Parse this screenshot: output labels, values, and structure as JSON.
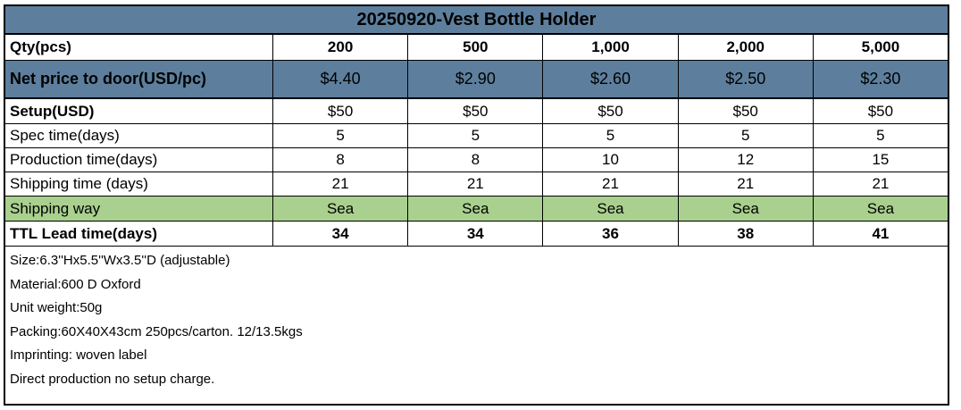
{
  "title": "20250920-Vest Bottle Holder",
  "colors": {
    "header_blue": "#5d7f9d",
    "shipping_green": "#a9d08e",
    "border": "#000000",
    "text": "#000000"
  },
  "table": {
    "rows": [
      {
        "label": "Qty(pcs)",
        "values": [
          "200",
          "500",
          "1,000",
          "2,000",
          "5,000"
        ]
      },
      {
        "label": "Net price to door(USD/pc)",
        "values": [
          "$4.40",
          "$2.90",
          "$2.60",
          "$2.50",
          "$2.30"
        ]
      },
      {
        "label": "Setup(USD)",
        "values": [
          "$50",
          "$50",
          "$50",
          "$50",
          "$50"
        ]
      },
      {
        "label": "Spec time(days)",
        "values": [
          "5",
          "5",
          "5",
          "5",
          "5"
        ]
      },
      {
        "label": "Production time(days)",
        "values": [
          "8",
          "8",
          "10",
          "12",
          "15"
        ]
      },
      {
        "label": "Shipping time (days)",
        "values": [
          "21",
          "21",
          "21",
          "21",
          "21"
        ]
      },
      {
        "label": "Shipping way",
        "values": [
          "Sea",
          "Sea",
          "Sea",
          "Sea",
          "Sea"
        ]
      },
      {
        "label": "TTL Lead time(days)",
        "values": [
          "34",
          "34",
          "36",
          "38",
          "41"
        ]
      }
    ]
  },
  "notes": [
    "Size:6.3''Hx5.5''Wx3.5''D (adjustable)",
    "Material:600 D Oxford",
    "Unit weight:50g",
    "Packing:60X40X43cm 250pcs/carton. 12/13.5kgs",
    "Imprinting: woven label",
    "Direct production no setup charge."
  ]
}
